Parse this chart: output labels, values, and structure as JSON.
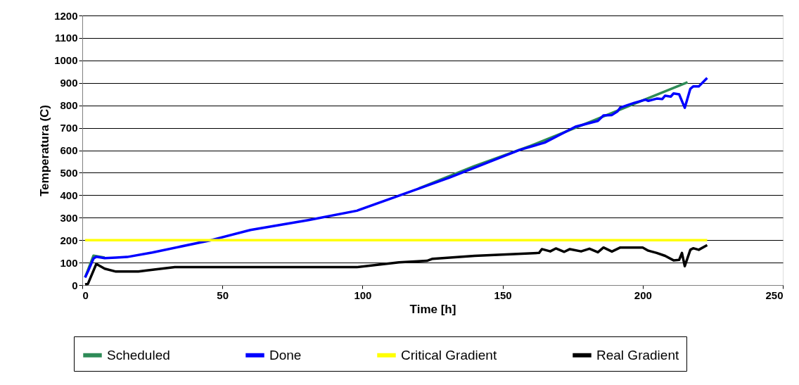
{
  "chart_data": {
    "type": "line",
    "xlabel": "Time [h]",
    "ylabel": "Temperatura (C)",
    "xlim": [
      0,
      250
    ],
    "xticks": [
      0,
      50,
      100,
      150,
      200,
      250
    ],
    "ylim": [
      0,
      1200
    ],
    "yticks": [
      0,
      100,
      200,
      300,
      400,
      500,
      600,
      700,
      800,
      900,
      1000,
      1100,
      1200
    ],
    "grid": "y",
    "legend": "bottom",
    "marker": "none",
    "line_style": "solid",
    "series": [
      {
        "name": "Scheduled",
        "color": "#2e8b57",
        "x": [
          1,
          4,
          8,
          16,
          25,
          60,
          81,
          98,
          120,
          140,
          160,
          180,
          200,
          216
        ],
        "values": [
          34,
          131,
          122,
          null,
          null,
          null,
          null,
          null,
          430,
          530,
          620,
          720,
          822,
          903
        ]
      },
      {
        "name": "Done",
        "color": "#0000ff",
        "x": [
          1,
          2,
          4,
          5,
          8,
          12,
          16,
          25,
          46,
          60,
          81,
          98,
          131,
          156,
          165,
          176,
          184,
          186,
          189,
          191,
          192,
          197,
          201,
          202,
          205,
          207,
          208,
          210,
          211,
          213,
          215,
          217,
          218,
          220,
          223
        ],
        "values": [
          34,
          60,
          118,
          126,
          120,
          122,
          125,
          145,
          200,
          245,
          290,
          331,
          478,
          601,
          634,
          705,
          731,
          755,
          757,
          773,
          790,
          811,
          825,
          820,
          830,
          828,
          843,
          839,
          853,
          849,
          789,
          874,
          884,
          884,
          922
        ]
      },
      {
        "name": "Critical Gradient",
        "color": "#ffff00",
        "x": [
          1,
          223
        ],
        "values": [
          200,
          200
        ]
      },
      {
        "name": "Real Gradient",
        "color": "#000000",
        "x": [
          1,
          2,
          5,
          8,
          12,
          20,
          23,
          33,
          81,
          98,
          113,
          123,
          125,
          140,
          163,
          164,
          167,
          169,
          172,
          174,
          178,
          181,
          184,
          186,
          189,
          192,
          200,
          202,
          205,
          208,
          211,
          213,
          214,
          215,
          217,
          218,
          220,
          223
        ],
        "values": [
          3,
          5,
          94,
          73,
          60,
          60,
          65,
          80,
          80,
          80,
          101,
          108,
          117,
          130,
          143,
          160,
          150,
          163,
          148,
          160,
          150,
          162,
          146,
          167,
          149,
          167,
          167,
          153,
          143,
          130,
          110,
          112,
          143,
          84,
          157,
          164,
          157,
          178
        ]
      }
    ]
  }
}
